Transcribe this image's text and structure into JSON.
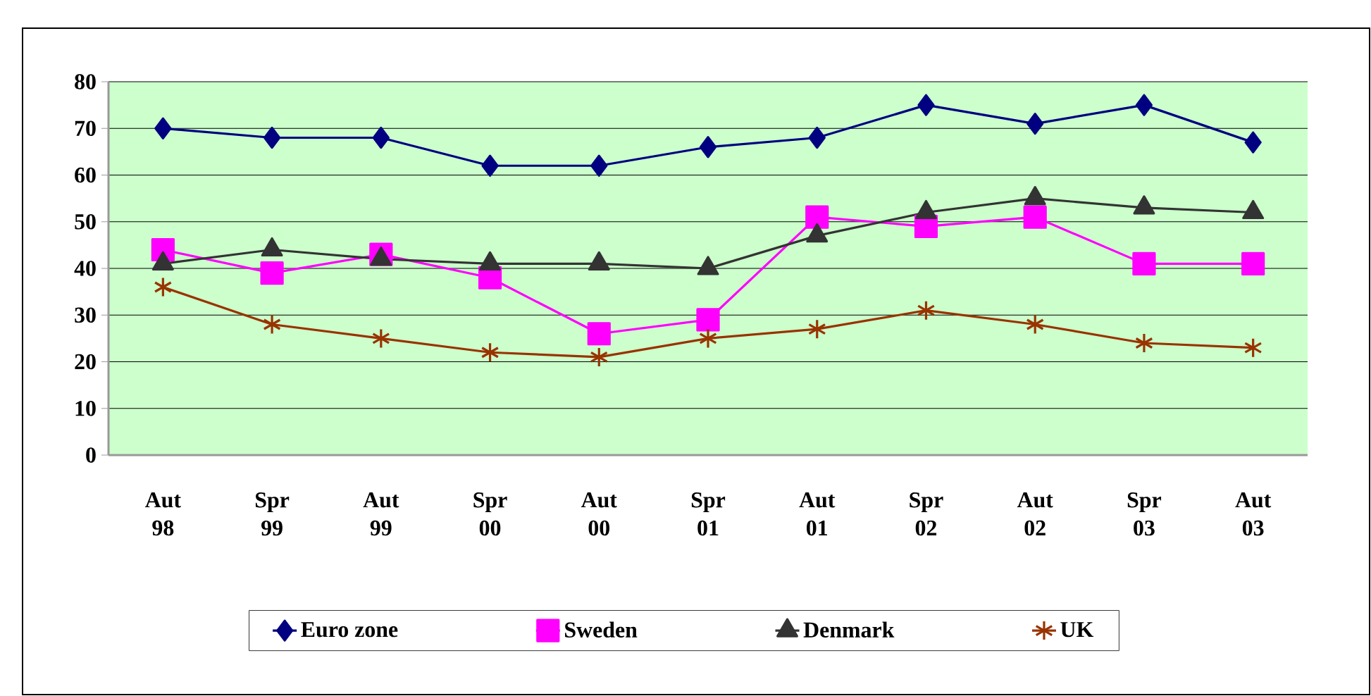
{
  "chart_data": {
    "type": "line",
    "categories": [
      "Aut 98",
      "Spr 99",
      "Aut 99",
      "Spr 00",
      "Aut 00",
      "Spr 01",
      "Aut 01",
      "Spr 02",
      "Aut 02",
      "Spr 03",
      "Aut 03"
    ],
    "series": [
      {
        "name": "Euro zone",
        "color": "#000080",
        "marker": "diamond",
        "values": [
          70,
          68,
          68,
          62,
          62,
          66,
          68,
          75,
          71,
          75,
          67
        ]
      },
      {
        "name": "Sweden",
        "color": "#ff00ff",
        "marker": "square",
        "values": [
          44,
          39,
          43,
          38,
          26,
          29,
          51,
          49,
          51,
          41,
          41
        ]
      },
      {
        "name": "Denmark",
        "color": "#333333",
        "marker": "triangle",
        "values": [
          41,
          44,
          42,
          41,
          41,
          40,
          47,
          52,
          55,
          53,
          52
        ]
      },
      {
        "name": "UK",
        "color": "#993300",
        "marker": "cross",
        "values": [
          36,
          28,
          25,
          22,
          21,
          25,
          27,
          31,
          28,
          24,
          23
        ]
      }
    ],
    "ylim": [
      0,
      80
    ],
    "yticks": [
      0,
      10,
      20,
      30,
      40,
      50,
      60,
      70,
      80
    ],
    "grid": "y",
    "legend": "bottom",
    "line_style": "solid"
  }
}
